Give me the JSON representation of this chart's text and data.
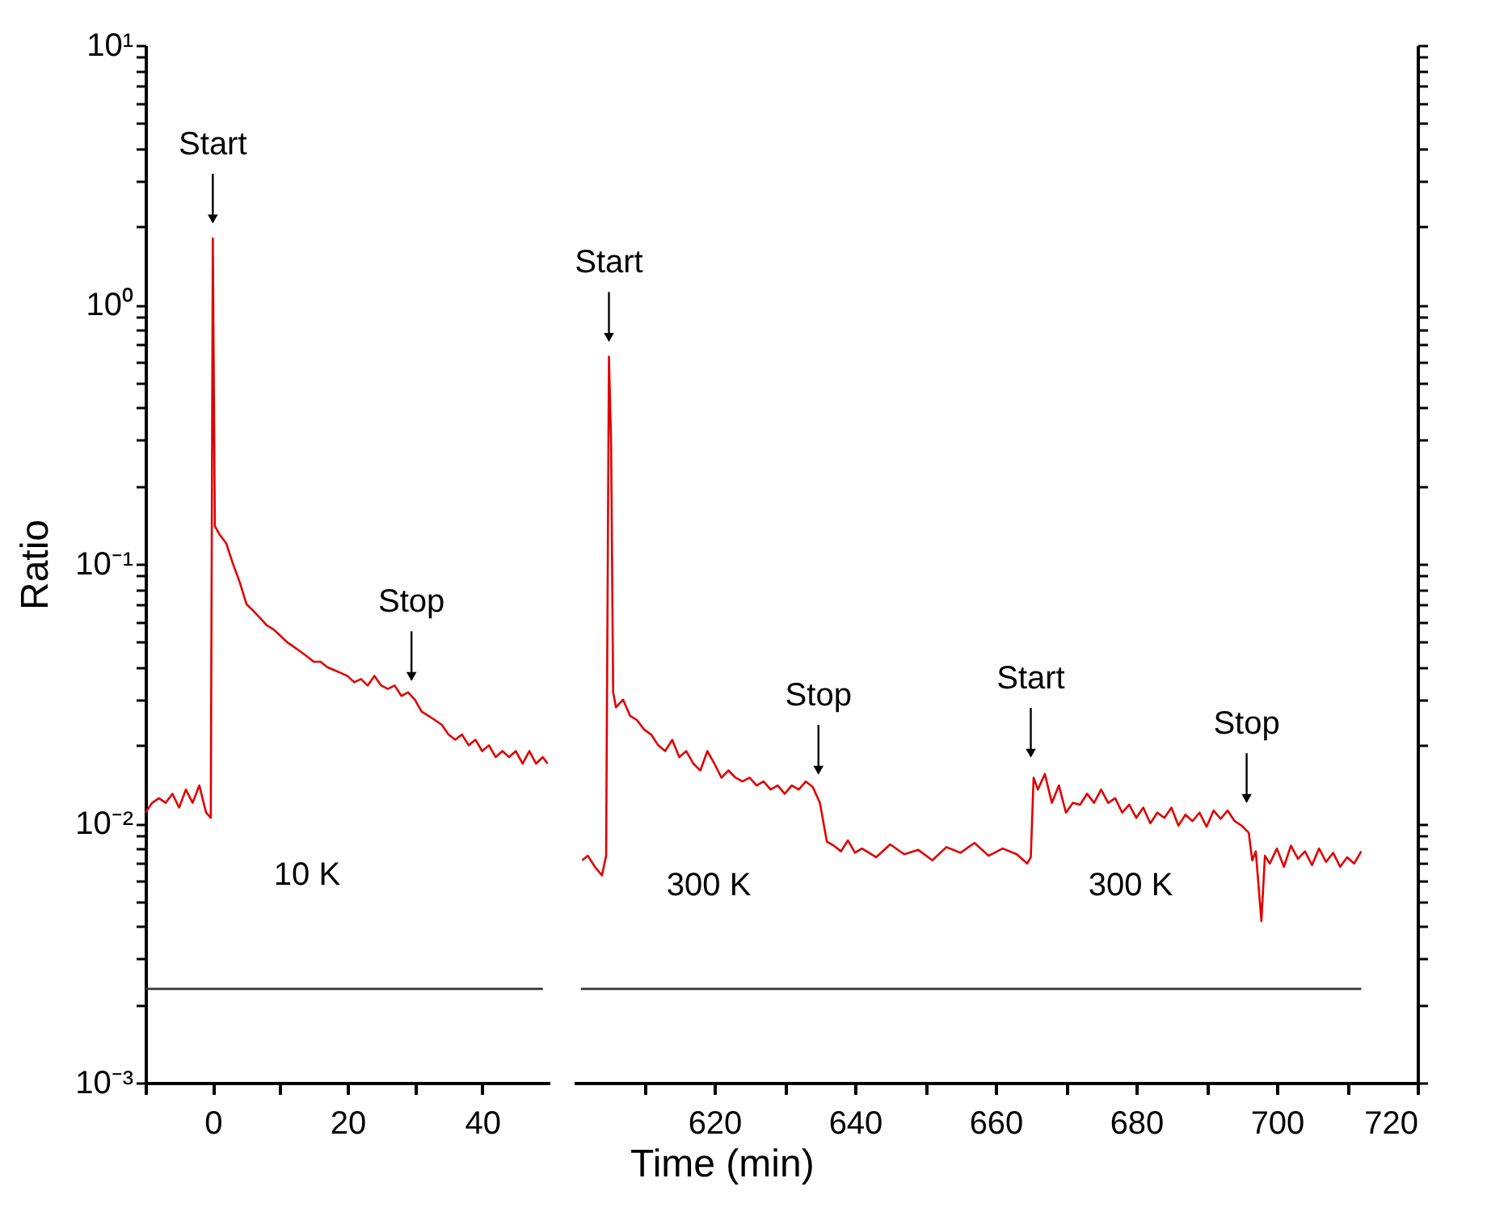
{
  "chart_data": [
    {
      "type": "line",
      "xlabel": "Time (min)",
      "ylabel": "Ratio",
      "log": "y",
      "xlim": [
        -10,
        50
      ],
      "ylim": [
        0.001,
        10
      ],
      "xticks": [
        {
          "value": -10,
          "label": null
        },
        0,
        {
          "value": 10,
          "label": null
        },
        20,
        {
          "value": 30,
          "label": null
        },
        40
      ],
      "yticks": [
        {
          "value": 0.001,
          "label": "10⁻³"
        },
        {
          "value": 0.002,
          "label": null
        },
        {
          "value": 0.003,
          "label": null
        },
        {
          "value": 0.004,
          "label": null
        },
        {
          "value": 0.005,
          "label": null
        },
        {
          "value": 0.006,
          "label": null
        },
        {
          "value": 0.007,
          "label": null
        },
        {
          "value": 0.008,
          "label": null
        },
        {
          "value": 0.009,
          "label": null
        },
        {
          "value": 0.01,
          "label": "10⁻²"
        },
        {
          "value": 0.02,
          "label": null
        },
        {
          "value": 0.03,
          "label": null
        },
        {
          "value": 0.04,
          "label": null
        },
        {
          "value": 0.05,
          "label": null
        },
        {
          "value": 0.06,
          "label": null
        },
        {
          "value": 0.07,
          "label": null
        },
        {
          "value": 0.08,
          "label": null
        },
        {
          "value": 0.09,
          "label": null
        },
        {
          "value": 0.1,
          "label": "10⁻¹"
        },
        {
          "value": 0.2,
          "label": null
        },
        {
          "value": 0.3,
          "label": null
        },
        {
          "value": 0.4,
          "label": null
        },
        {
          "value": 0.5,
          "label": null
        },
        {
          "value": 0.6,
          "label": null
        },
        {
          "value": 0.7,
          "label": null
        },
        {
          "value": 0.8,
          "label": null
        },
        {
          "value": 0.9,
          "label": null
        },
        {
          "value": 1,
          "label": "10⁰"
        },
        {
          "value": 2,
          "label": null
        },
        {
          "value": 3,
          "label": null
        },
        {
          "value": 4,
          "label": null
        },
        {
          "value": 5,
          "label": null
        },
        {
          "value": 6,
          "label": null
        },
        {
          "value": 7,
          "label": null
        },
        {
          "value": 8,
          "label": null
        },
        {
          "value": 9,
          "label": null
        },
        {
          "value": 10,
          "label": "10¹"
        }
      ],
      "series": [
        {
          "color": "#e00000",
          "x": [
            -10,
            -9,
            -8,
            -7,
            -6,
            -5,
            -4,
            -3,
            -2,
            -1,
            -0.3,
            0,
            0.3,
            1,
            2,
            3,
            4,
            5,
            6,
            7,
            8,
            9,
            10,
            11,
            12,
            13,
            14,
            15,
            16,
            17,
            18,
            19,
            20,
            21,
            22,
            23,
            24,
            25,
            26,
            27,
            28,
            29,
            30,
            31,
            32,
            33,
            34,
            35,
            36,
            37,
            38,
            39,
            40,
            41,
            42,
            43,
            44,
            45,
            46,
            47,
            48,
            49,
            49.7
          ],
          "values": [
            0.011,
            0.012,
            0.0125,
            0.012,
            0.013,
            0.0115,
            0.0135,
            0.012,
            0.014,
            0.011,
            0.0105,
            1.8,
            0.14,
            0.13,
            0.12,
            0.1,
            0.085,
            0.07,
            0.066,
            0.062,
            0.058,
            0.056,
            0.053,
            0.05,
            0.048,
            0.046,
            0.044,
            0.042,
            0.042,
            0.04,
            0.039,
            0.038,
            0.037,
            0.035,
            0.036,
            0.034,
            0.037,
            0.034,
            0.033,
            0.034,
            0.031,
            0.032,
            0.03,
            0.027,
            0.026,
            0.025,
            0.024,
            0.022,
            0.021,
            0.022,
            0.02,
            0.021,
            0.019,
            0.02,
            0.018,
            0.019,
            0.018,
            0.019,
            0.017,
            0.019,
            0.017,
            0.018,
            0.017
          ]
        },
        {
          "color": "#333333",
          "x": [
            -10,
            49
          ],
          "values": [
            0.0023,
            0.0023
          ]
        }
      ],
      "annotations": [
        {
          "text": "Start",
          "x": 0,
          "y": 1.8
        },
        {
          "text": "Stop",
          "x": 29.5,
          "y": 0.031
        },
        "10 K"
      ]
    },
    {
      "type": "line",
      "log": "y",
      "xlim": [
        600,
        720
      ],
      "ylim": [
        0.001,
        10
      ],
      "tick_labels": "x",
      "xticks": [
        {
          "value": 610,
          "label": null
        },
        620,
        {
          "value": 630,
          "label": null
        },
        640,
        {
          "value": 650,
          "label": null
        },
        660,
        {
          "value": 670,
          "label": null
        },
        680,
        {
          "value": 690,
          "label": null
        },
        700,
        {
          "value": 710,
          "label": null
        },
        720
      ],
      "yticks": [
        0.001,
        0.002,
        0.003,
        0.004,
        0.005,
        0.006,
        0.007,
        0.008,
        0.009,
        0.01,
        0.02,
        0.03,
        0.04,
        0.05,
        0.06,
        0.07,
        0.08,
        0.09,
        0.1,
        0.2,
        0.3,
        0.4,
        0.5,
        0.6,
        0.7,
        0.8,
        0.9,
        1,
        2,
        3,
        4,
        5,
        6,
        7,
        8,
        9,
        10
      ],
      "series": [
        {
          "color": "#e00000",
          "x": [
            601.2,
            602,
            603,
            604,
            604.6,
            605,
            605.3,
            605.6,
            606,
            607,
            608,
            609,
            610,
            611,
            612,
            613,
            614,
            615,
            616,
            617,
            618,
            619,
            620,
            621,
            622,
            623,
            624,
            625,
            626,
            627,
            628,
            629,
            630,
            631,
            632,
            633,
            634,
            635,
            636,
            637,
            638,
            639,
            640,
            641,
            643,
            645,
            647,
            649,
            651,
            653,
            655,
            657,
            659,
            661,
            663,
            664.5,
            665,
            665.4,
            666,
            667,
            668,
            669,
            670,
            671,
            672,
            673,
            674,
            675,
            676,
            677,
            678,
            679,
            680,
            681,
            682,
            683,
            684,
            685,
            686,
            687,
            688,
            689,
            690,
            691,
            692,
            693,
            694,
            695,
            696,
            696.5,
            697,
            697.8,
            698.3,
            699,
            700,
            701,
            702,
            703,
            704,
            705,
            706,
            707,
            708,
            709,
            710,
            711,
            712
          ],
          "values": [
            0.0072,
            0.0075,
            0.0068,
            0.0063,
            0.0075,
            0.63,
            0.3,
            0.032,
            0.028,
            0.03,
            0.026,
            0.025,
            0.023,
            0.022,
            0.02,
            0.019,
            0.021,
            0.018,
            0.019,
            0.017,
            0.016,
            0.019,
            0.017,
            0.015,
            0.016,
            0.015,
            0.0145,
            0.015,
            0.014,
            0.0145,
            0.0135,
            0.014,
            0.013,
            0.014,
            0.0135,
            0.0145,
            0.0138,
            0.012,
            0.0085,
            0.0082,
            0.0078,
            0.0086,
            0.0077,
            0.008,
            0.0074,
            0.0083,
            0.0076,
            0.0079,
            0.0072,
            0.0081,
            0.0077,
            0.0084,
            0.0075,
            0.008,
            0.0076,
            0.007,
            0.0074,
            0.015,
            0.0135,
            0.0155,
            0.012,
            0.014,
            0.011,
            0.012,
            0.0118,
            0.013,
            0.012,
            0.0135,
            0.012,
            0.0125,
            0.011,
            0.0118,
            0.0105,
            0.0115,
            0.01,
            0.011,
            0.0105,
            0.0115,
            0.0098,
            0.0108,
            0.0102,
            0.011,
            0.0097,
            0.0112,
            0.0104,
            0.0112,
            0.0102,
            0.0098,
            0.0092,
            0.0072,
            0.0078,
            0.0042,
            0.0075,
            0.007,
            0.008,
            0.0068,
            0.0082,
            0.0073,
            0.0078,
            0.0069,
            0.008,
            0.0071,
            0.0077,
            0.0068,
            0.0074,
            0.007,
            0.0078
          ]
        },
        {
          "color": "#333333",
          "x": [
            601,
            712
          ],
          "values": [
            0.0023,
            0.0023
          ]
        }
      ],
      "annotations": [
        {
          "text": "Start",
          "x": 605,
          "y": 0.63
        },
        {
          "text": "Stop",
          "x": 634.8,
          "y": 0.0135
        },
        {
          "text": "Start",
          "x": 665,
          "y": 0.0157
        },
        {
          "text": "Stop",
          "x": 695.7,
          "y": 0.0105
        },
        "300 K",
        "300 K"
      ]
    }
  ]
}
